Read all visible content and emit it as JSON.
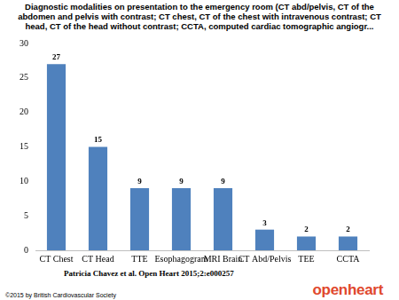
{
  "chart_data": {
    "type": "bar",
    "title": "Diagnostic modalities on presentation to the emergency room (CT abd/pelvis, CT of the abdomen and pelvis with contrast; CT chest, CT of the chest with intravenous contrast; CT head, CT of the head without contrast; CCTA, computed cardiac tomographic angiogr...",
    "categories": [
      "CT Chest",
      "CT Head",
      "TTE",
      "Esophagogram",
      "MRI Brain",
      "CT Abd/Pelvis",
      "TEE",
      "CCTA"
    ],
    "values": [
      27,
      15,
      9,
      9,
      9,
      3,
      2,
      2
    ],
    "color": "#4f81bd",
    "ylim": [
      0,
      30
    ],
    "yticks": [
      0,
      5,
      10,
      15,
      20,
      25,
      30
    ],
    "grid": false,
    "data_labels": true,
    "annotations": [
      "Patricia Chavez et al. Open Heart 2015;2:e000257",
      "©2015 by British Cardiovascular Society",
      "openheart"
    ]
  }
}
